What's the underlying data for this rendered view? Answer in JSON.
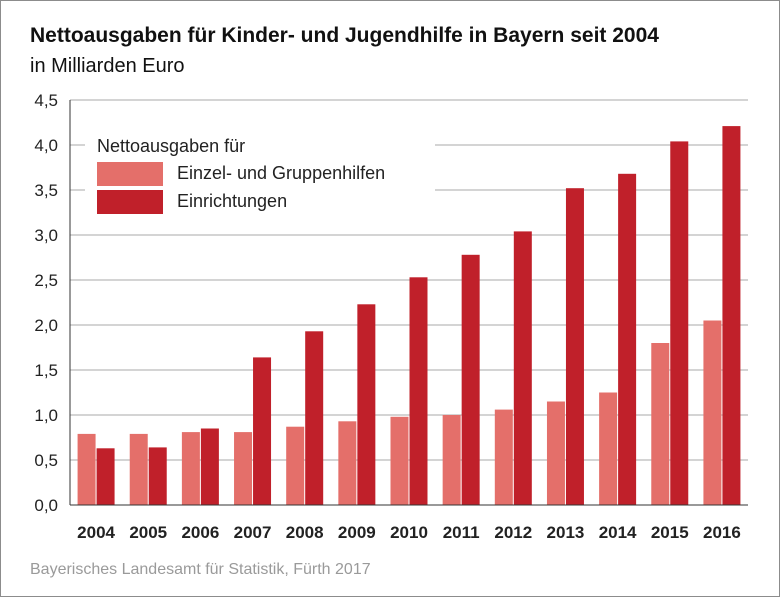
{
  "header": {
    "title": "Nettoausgaben für Kinder- und Jugendhilfe in Bayern seit 2004",
    "subtitle": "in Milliarden Euro"
  },
  "source": "Bayerisches Landesamt für Statistik, Fürth 2017",
  "colors": {
    "series_light": "#e46f6a",
    "series_dark": "#c0202a",
    "grid": "#aaaaaa",
    "axis": "#333333"
  },
  "chart_data": {
    "type": "bar",
    "title": "Nettoausgaben für Kinder- und Jugendhilfe in Bayern seit 2004",
    "subtitle": "in Milliarden Euro",
    "xlabel": "",
    "ylabel": "",
    "ylim": [
      0,
      4.5
    ],
    "yticks": [
      "0,0",
      "0,5",
      "1,0",
      "1,5",
      "2,0",
      "2,5",
      "3,0",
      "3,5",
      "4,0",
      "4,5"
    ],
    "categories": [
      "2004",
      "2005",
      "2006",
      "2007",
      "2008",
      "2009",
      "2010",
      "2011",
      "2012",
      "2013",
      "2014",
      "2015",
      "2016"
    ],
    "legend": {
      "title": "Nettoausgaben für",
      "placement": "top-left"
    },
    "series": [
      {
        "name": "Einzel- und Gruppenhilfen",
        "color": "#e46f6a",
        "values": [
          0.79,
          0.79,
          0.81,
          0.81,
          0.87,
          0.93,
          0.98,
          1.0,
          1.06,
          1.15,
          1.25,
          1.8,
          2.05
        ]
      },
      {
        "name": "Einrichtungen",
        "color": "#c0202a",
        "values": [
          0.63,
          0.64,
          0.85,
          1.64,
          1.93,
          2.23,
          2.53,
          2.78,
          3.04,
          3.52,
          3.68,
          4.04,
          4.21
        ]
      }
    ]
  }
}
